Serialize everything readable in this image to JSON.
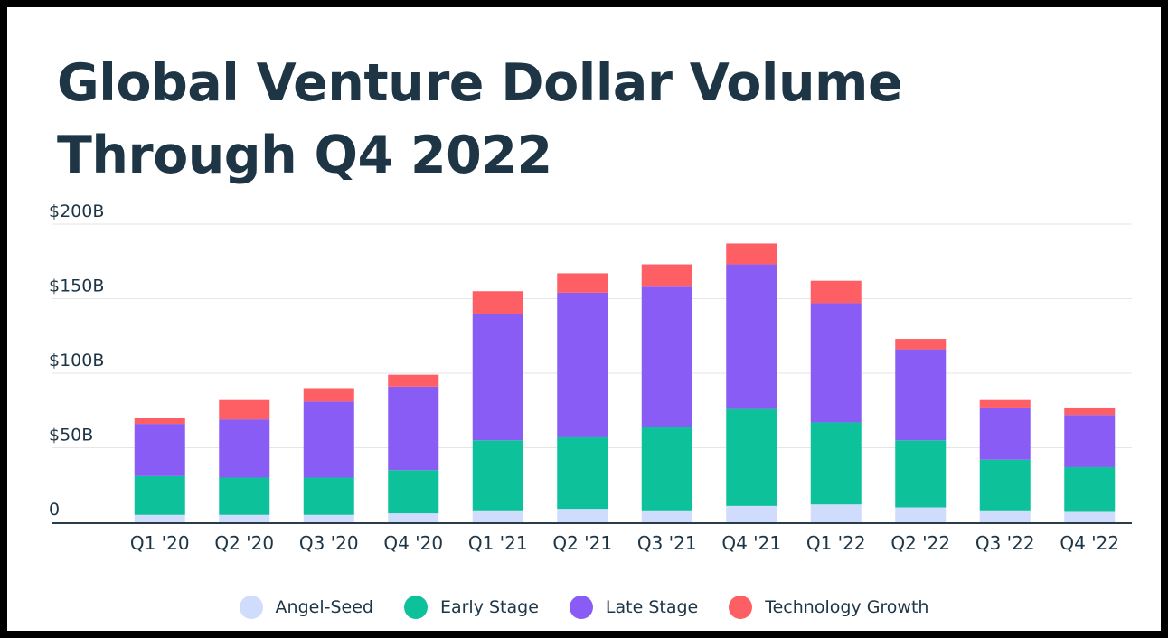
{
  "chart_data": {
    "type": "bar",
    "stacked": true,
    "title": "Global Venture Dollar Volume Through Q4 2022",
    "xlabel": "",
    "ylabel": "",
    "ylim": [
      0,
      200
    ],
    "ytick_values": [
      0,
      50,
      100,
      150,
      200
    ],
    "ytick_labels": [
      "0",
      "$50B",
      "$100B",
      "$150B",
      "$200B"
    ],
    "grid": true,
    "legend_position": "bottom-center",
    "categories": [
      "Q1 '20",
      "Q2 '20",
      "Q3 '20",
      "Q4 '20",
      "Q1 '21",
      "Q2 '21",
      "Q3 '21",
      "Q4 '21",
      "Q1 '22",
      "Q2 '22",
      "Q3 '22",
      "Q4 '22"
    ],
    "series": [
      {
        "name": "Angel-Seed",
        "color": "#cfdcfb",
        "values": [
          5,
          5,
          5,
          6,
          8,
          9,
          8,
          11,
          12,
          10,
          8,
          7
        ]
      },
      {
        "name": "Early Stage",
        "color": "#0dc29b",
        "values": [
          26,
          25,
          25,
          29,
          47,
          48,
          56,
          65,
          55,
          45,
          34,
          30
        ]
      },
      {
        "name": "Late Stage",
        "color": "#8a5cf6",
        "values": [
          35,
          39,
          51,
          56,
          85,
          97,
          94,
          97,
          80,
          61,
          35,
          35
        ]
      },
      {
        "name": "Technology Growth",
        "color": "#fe5f65",
        "values": [
          4,
          13,
          9,
          8,
          15,
          13,
          15,
          14,
          15,
          7,
          5,
          5
        ]
      }
    ]
  }
}
